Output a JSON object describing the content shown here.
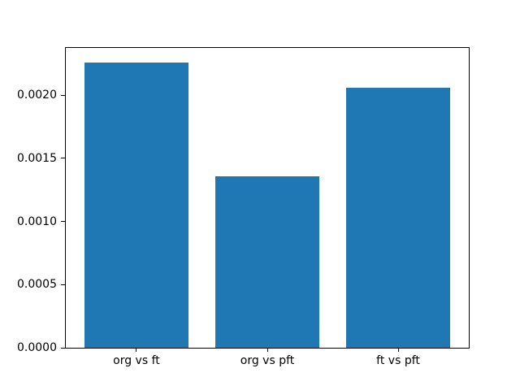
{
  "chart_data": {
    "type": "bar",
    "categories": [
      "org vs ft",
      "org vs pft",
      "ft vs pft"
    ],
    "values": [
      0.00226,
      0.00136,
      0.00206
    ],
    "title": "",
    "xlabel": "",
    "ylabel": "",
    "ylim": [
      0,
      0.002373
    ],
    "xlim": [
      -0.54,
      2.54
    ],
    "bar_width": 0.8,
    "bar_color": "#1f77b4",
    "yticks": [
      {
        "value": 0.0,
        "label": "0.0000"
      },
      {
        "value": 0.0005,
        "label": "0.0005"
      },
      {
        "value": 0.001,
        "label": "0.0010"
      },
      {
        "value": 0.0015,
        "label": "0.0015"
      },
      {
        "value": 0.002,
        "label": "0.0020"
      }
    ],
    "grid": false,
    "legend": false
  }
}
